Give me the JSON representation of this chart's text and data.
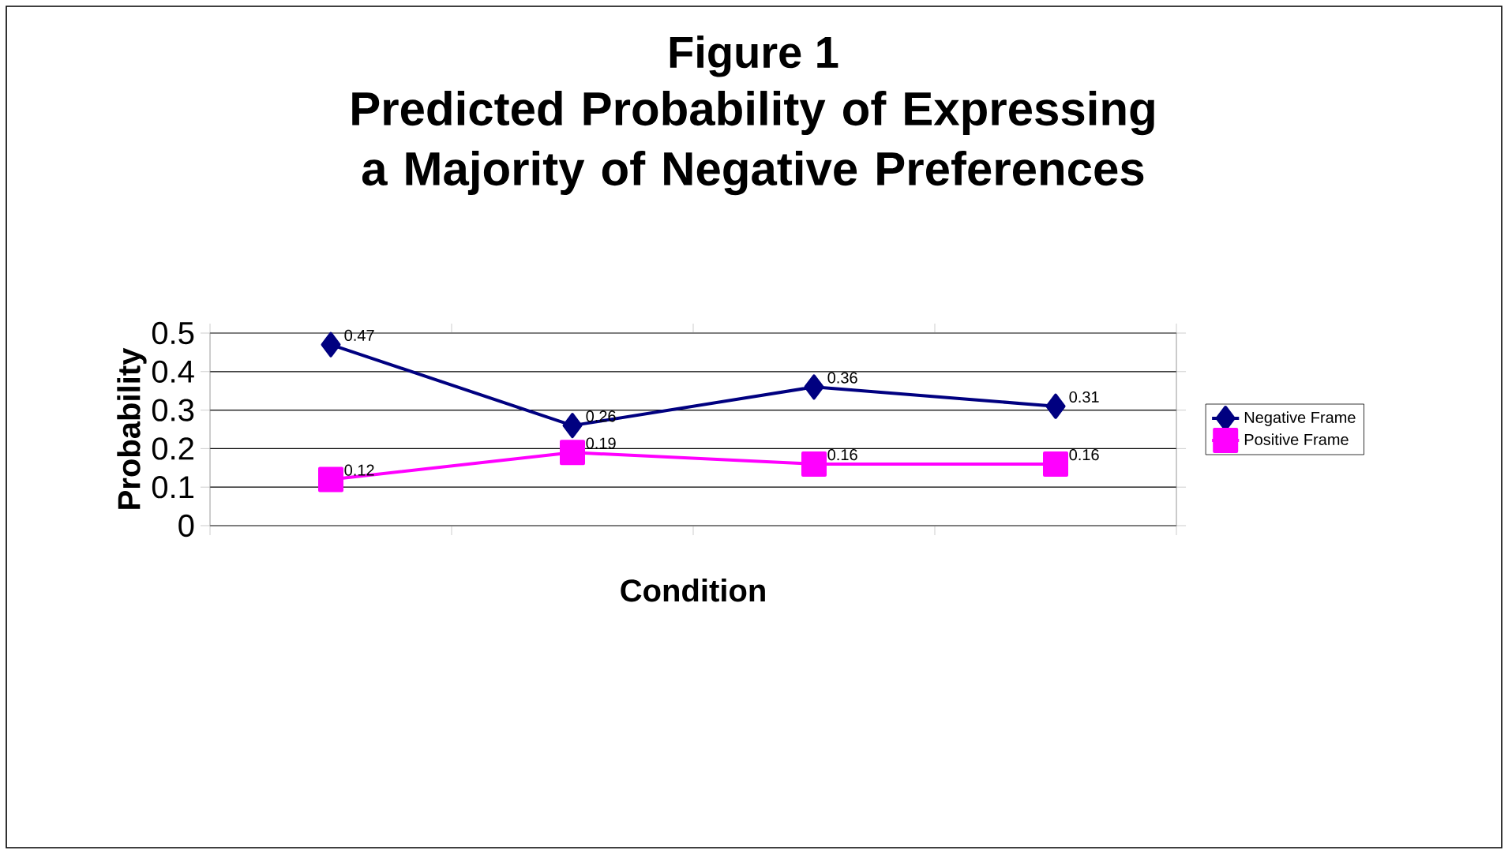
{
  "chart_data": {
    "type": "line",
    "title": "Figure 1",
    "subtitle": "Predicted Probability of Expressing a Majority of Negative Preferences",
    "xlabel": "Condition",
    "ylabel": "Probability",
    "categories": [
      null,
      null,
      null,
      null
    ],
    "series": [
      {
        "name": "Negative Frame",
        "color": "#000080",
        "marker": "diamond",
        "values": [
          0.47,
          0.26,
          0.36,
          0.31
        ]
      },
      {
        "name": "Positive Frame",
        "color": "#ff00ff",
        "marker": "square",
        "values": [
          0.12,
          0.19,
          0.16,
          0.16
        ]
      }
    ],
    "ylim": [
      0,
      0.5
    ],
    "yticks": [
      0,
      0.1,
      0.2,
      0.3,
      0.4,
      0.5
    ],
    "grid": "y",
    "legend": "right",
    "data_labels": true,
    "line_style": "solid"
  }
}
